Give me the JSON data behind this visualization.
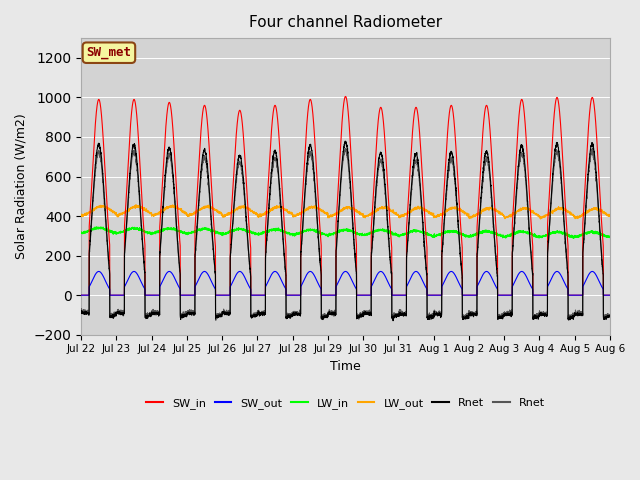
{
  "title": "Four channel Radiometer",
  "ylabel": "Solar Radiation (W/m2)",
  "xlabel": "Time",
  "ylim": [
    -200,
    1300
  ],
  "yticks": [
    -200,
    0,
    200,
    400,
    600,
    800,
    1000,
    1200
  ],
  "background_color": "#e8e8e8",
  "plot_bg_color": "#d3d3d3",
  "annotation_text": "SW_met",
  "annotation_bg": "#f5f5a0",
  "annotation_border": "#8b4513",
  "annotation_text_color": "#8b0000",
  "x_tick_labels": [
    "Jul 22",
    "Jul 23",
    "Jul 24",
    "Jul 25",
    "Jul 26",
    "Jul 27",
    "Jul 28",
    "Jul 29",
    "Jul 30",
    "Jul 31",
    "Aug 1",
    "Aug 2",
    "Aug 3",
    "Aug 4",
    "Aug 5",
    "Aug 6"
  ],
  "n_days": 15,
  "legend_entries": [
    {
      "label": "SW_in",
      "color": "red"
    },
    {
      "label": "SW_out",
      "color": "blue"
    },
    {
      "label": "LW_in",
      "color": "lime"
    },
    {
      "label": "LW_out",
      "color": "orange"
    },
    {
      "label": "Rnet",
      "color": "black"
    },
    {
      "label": "Rnet",
      "color": "#555555"
    }
  ]
}
